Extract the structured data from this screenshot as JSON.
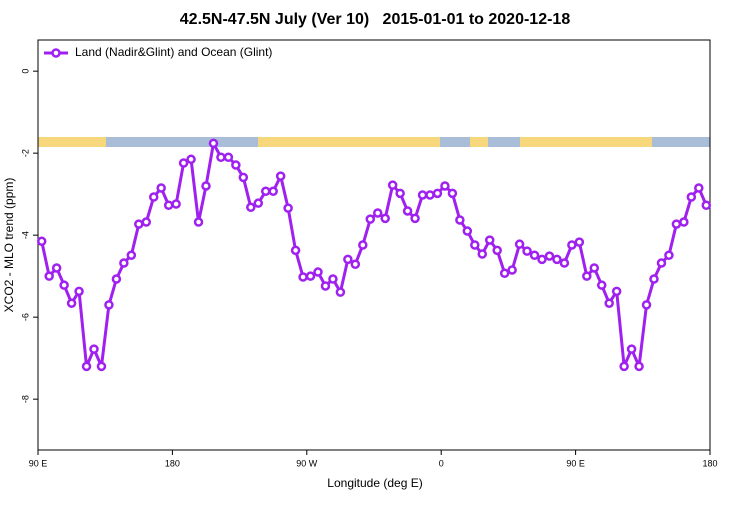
{
  "chart_data": {
    "type": "line",
    "title": "42.5N-47.5N July (Ver 10)   2015-01-01 to 2020-12-18",
    "xlabel": "Longitude (deg E)",
    "ylabel": "XCO2 - MLO trend (ppm)",
    "x": [
      92.5,
      97.5,
      102.5,
      107.5,
      112.5,
      117.5,
      122.5,
      127.5,
      132.5,
      137.5,
      142.5,
      147.5,
      152.5,
      157.5,
      162.5,
      167.5,
      172.5,
      177.5,
      182.5,
      187.5,
      192.5,
      197.5,
      202.5,
      207.5,
      212.5,
      217.5,
      222.5,
      227.5,
      232.5,
      237.5,
      242.5,
      247.5,
      252.5,
      257.5,
      262.5,
      267.5,
      272.5,
      277.5,
      282.5,
      287.5,
      292.5,
      297.5,
      302.5,
      307.5,
      312.5,
      317.5,
      322.5,
      327.5,
      332.5,
      337.5,
      342.5,
      347.5,
      352.5,
      357.5,
      362.5,
      367.5,
      372.5,
      377.5,
      382.5,
      387.5,
      392.5,
      397.5,
      402.5,
      407.5,
      412.5,
      417.5,
      422.5,
      427.5,
      432.5,
      437.5,
      442.5,
      447.5,
      452.5,
      457.5,
      462.5,
      467.5,
      472.5,
      477.5,
      482.5,
      487.5,
      492.5,
      497.5,
      502.5,
      507.5,
      512.5,
      517.5,
      522.5,
      527.5,
      532.5,
      537.5
    ],
    "series": [
      {
        "name": "Land (Nadir&Glint) and Ocean (Glint)",
        "color": "#a020f0",
        "values": [
          -4.15,
          -5.0,
          -4.8,
          -5.22,
          -5.66,
          -5.37,
          -7.2,
          -6.78,
          -7.2,
          -5.7,
          -5.07,
          -4.68,
          -4.49,
          -3.73,
          -3.68,
          -3.07,
          -2.85,
          -3.27,
          -3.24,
          -2.24,
          -2.15,
          -3.68,
          -2.8,
          -1.76,
          -2.1,
          -2.1,
          -2.29,
          -2.59,
          -3.32,
          -3.22,
          -2.93,
          -2.93,
          -2.56,
          -3.34,
          -4.37,
          -5.02,
          -5.0,
          -4.9,
          -5.24,
          -5.07,
          -5.39,
          -4.59,
          -4.71,
          -4.24,
          -3.61,
          -3.46,
          -3.59,
          -2.78,
          -2.98,
          -3.41,
          -3.59,
          -3.02,
          -3.02,
          -2.98,
          -2.8,
          -2.98,
          -3.63,
          -3.9,
          -4.24,
          -4.46,
          -4.12,
          -4.37,
          -4.93,
          -4.85,
          -4.22,
          -4.39,
          -4.49,
          -4.59,
          -4.51,
          -4.59,
          -4.68,
          -4.24,
          -4.17,
          -5.0,
          -4.8,
          -5.22,
          -5.66,
          -5.37,
          -7.2,
          -6.78,
          -7.2,
          -5.7,
          -5.07,
          -4.68,
          -4.49,
          -3.73,
          -3.68,
          -3.07,
          -2.85,
          -3.27
        ]
      }
    ],
    "xlim": [
      90,
      540
    ],
    "xticks": [
      {
        "value": 90,
        "label": "90 E"
      },
      {
        "value": 180,
        "label": "180"
      },
      {
        "value": 270,
        "label": "90 W"
      },
      {
        "value": 360,
        "label": "0"
      },
      {
        "value": 450,
        "label": "90 E"
      },
      {
        "value": 540,
        "label": "180"
      }
    ],
    "ylim": [
      -9.24,
      0.76
    ],
    "yticks": [
      0,
      -2,
      -4,
      -6,
      -8
    ],
    "legend": "top-left"
  }
}
